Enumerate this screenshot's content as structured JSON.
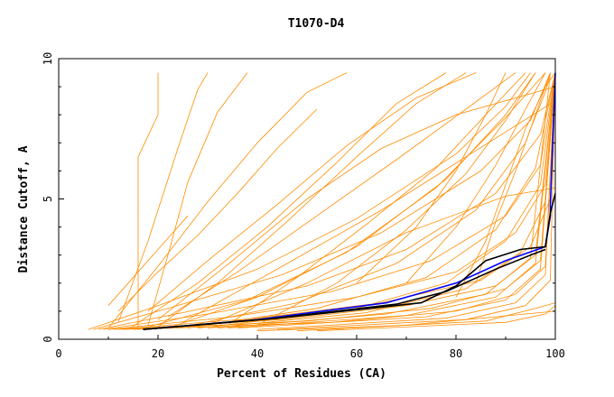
{
  "chart_data": {
    "type": "line",
    "title": "T1070-D4",
    "xlabel": "Percent of Residues (CA)",
    "ylabel": "Distance Cutoff, A",
    "xlim": [
      0,
      100
    ],
    "ylim": [
      0,
      10
    ],
    "x_ticks": [
      0,
      20,
      40,
      60,
      80,
      100
    ],
    "y_ticks": [
      0,
      5,
      10
    ],
    "grid": false,
    "legend": "none",
    "colors": {
      "models": "#ff8c00",
      "reference": "#0000ff",
      "highlight": "#000000"
    },
    "series": [
      {
        "color": "#ff8c00",
        "x": [
          6,
          20,
          40,
          60,
          80,
          90,
          95
        ],
        "y": [
          0.35,
          1.2,
          2.5,
          4.3,
          6.6,
          8.3,
          9.5
        ]
      },
      {
        "color": "#ff8c00",
        "x": [
          7,
          22,
          45,
          65,
          85,
          95,
          99
        ],
        "y": [
          0.35,
          1.1,
          2.3,
          3.8,
          6.0,
          7.8,
          9.5
        ]
      },
      {
        "color": "#ff8c00",
        "x": [
          8,
          25,
          50,
          70,
          88,
          97,
          100
        ],
        "y": [
          0.35,
          0.95,
          1.9,
          3.2,
          5.2,
          7.3,
          9.5
        ]
      },
      {
        "color": "#ff8c00",
        "x": [
          9,
          30,
          55,
          75,
          90,
          97,
          100
        ],
        "y": [
          0.35,
          0.9,
          1.7,
          2.8,
          4.4,
          6.2,
          9.5
        ]
      },
      {
        "color": "#ff8c00",
        "x": [
          10,
          35,
          60,
          80,
          92,
          98,
          100
        ],
        "y": [
          0.35,
          0.8,
          1.5,
          2.4,
          3.8,
          5.5,
          9.5
        ]
      },
      {
        "color": "#ff8c00",
        "x": [
          11,
          40,
          65,
          85,
          95,
          99,
          100
        ],
        "y": [
          0.35,
          0.75,
          1.3,
          2.1,
          3.3,
          5.0,
          9.5
        ]
      },
      {
        "color": "#ff8c00",
        "x": [
          12,
          45,
          70,
          88,
          96,
          100
        ],
        "y": [
          0.35,
          0.7,
          1.2,
          1.9,
          3.0,
          9.5
        ]
      },
      {
        "color": "#ff8c00",
        "x": [
          13,
          50,
          75,
          90,
          97,
          100
        ],
        "y": [
          0.35,
          0.65,
          1.1,
          1.8,
          2.8,
          9.5
        ]
      },
      {
        "color": "#ff8c00",
        "x": [
          15,
          55,
          80,
          92,
          98,
          100
        ],
        "y": [
          0.35,
          0.6,
          1.0,
          1.6,
          2.6,
          9.5
        ]
      },
      {
        "color": "#ff8c00",
        "x": [
          16,
          38,
          58,
          76,
          90,
          98
        ],
        "y": [
          0.35,
          1.4,
          3.1,
          5.4,
          7.9,
          9.5
        ]
      },
      {
        "color": "#ff8c00",
        "x": [
          14,
          28,
          42,
          56,
          68,
          78
        ],
        "y": [
          0.35,
          2.0,
          4.0,
          6.3,
          8.4,
          9.5
        ]
      },
      {
        "color": "#ff8c00",
        "x": [
          10,
          20,
          30,
          40,
          50,
          58
        ],
        "y": [
          0.4,
          2.6,
          4.9,
          7.0,
          8.8,
          9.5
        ]
      },
      {
        "color": "#ff8c00",
        "x": [
          12,
          18,
          24,
          28,
          30
        ],
        "y": [
          0.6,
          3.5,
          6.8,
          8.9,
          9.5
        ]
      },
      {
        "color": "#ff8c00",
        "x": [
          16,
          16,
          20,
          20
        ],
        "y": [
          0.4,
          6.5,
          8.0,
          9.5
        ]
      },
      {
        "color": "#ff8c00",
        "x": [
          18,
          22,
          26,
          32,
          38
        ],
        "y": [
          0.5,
          3.0,
          5.6,
          8.1,
          9.5
        ]
      },
      {
        "color": "#ff8c00",
        "x": [
          20,
          32,
          46,
          60,
          72,
          82
        ],
        "y": [
          0.45,
          2.0,
          4.2,
          6.5,
          8.4,
          9.5
        ]
      },
      {
        "color": "#ff8c00",
        "x": [
          22,
          40,
          60,
          78,
          90,
          96
        ],
        "y": [
          0.4,
          1.5,
          3.3,
          5.7,
          8.0,
          9.5
        ]
      },
      {
        "color": "#ff8c00",
        "x": [
          24,
          48,
          68,
          84,
          94,
          99
        ],
        "y": [
          0.4,
          1.3,
          2.7,
          4.6,
          7.0,
          9.5
        ]
      },
      {
        "color": "#ff8c00",
        "x": [
          26,
          52,
          74,
          88,
          96,
          100
        ],
        "y": [
          0.4,
          1.1,
          2.2,
          3.9,
          6.1,
          9.5
        ]
      },
      {
        "color": "#ff8c00",
        "x": [
          28,
          58,
          78,
          90,
          97,
          100
        ],
        "y": [
          0.4,
          1.0,
          2.0,
          3.5,
          5.5,
          9.5
        ]
      },
      {
        "color": "#ff8c00",
        "x": [
          30,
          62,
          82,
          93,
          98,
          100
        ],
        "y": [
          0.4,
          0.95,
          1.8,
          3.1,
          4.9,
          9.5
        ]
      },
      {
        "color": "#ff8c00",
        "x": [
          32,
          66,
          86,
          95,
          99
        ],
        "y": [
          0.4,
          0.9,
          1.6,
          2.9,
          9.5
        ]
      },
      {
        "color": "#ff8c00",
        "x": [
          34,
          70,
          88,
          96,
          100
        ],
        "y": [
          0.4,
          0.85,
          1.5,
          2.7,
          9.5
        ]
      },
      {
        "color": "#ff8c00",
        "x": [
          36,
          74,
          90,
          97,
          100
        ],
        "y": [
          0.4,
          0.8,
          1.4,
          2.5,
          9.5
        ]
      },
      {
        "color": "#ff8c00",
        "x": [
          40,
          78,
          92,
          98,
          100
        ],
        "y": [
          0.35,
          0.75,
          1.3,
          2.3,
          9.5
        ]
      },
      {
        "color": "#ff8c00",
        "x": [
          44,
          82,
          94,
          99,
          100
        ],
        "y": [
          0.35,
          0.7,
          1.2,
          2.1,
          9.5
        ]
      },
      {
        "color": "#ff8c00",
        "x": [
          48,
          86,
          96,
          100
        ],
        "y": [
          0.3,
          0.65,
          1.1,
          1.3
        ]
      },
      {
        "color": "#ff8c00",
        "x": [
          52,
          90,
          98,
          100
        ],
        "y": [
          0.3,
          0.6,
          0.9,
          1.2
        ]
      },
      {
        "color": "#ff8c00",
        "x": [
          40,
          70,
          88,
          100
        ],
        "y": [
          0.3,
          0.5,
          0.8,
          1.0
        ]
      },
      {
        "color": "#ff8c00",
        "x": [
          30,
          50,
          70,
          90,
          100
        ],
        "y": [
          0.5,
          2.0,
          3.8,
          5.1,
          5.4
        ]
      },
      {
        "color": "#ff8c00",
        "x": [
          25,
          45,
          65,
          82,
          100
        ],
        "y": [
          0.6,
          2.6,
          4.6,
          6.5,
          8.5
        ]
      },
      {
        "color": "#ff8c00",
        "x": [
          20,
          35,
          50,
          65,
          80,
          100
        ],
        "y": [
          0.7,
          2.8,
          5.0,
          6.8,
          8.0,
          9.0
        ]
      },
      {
        "color": "#ff8c00",
        "x": [
          34,
          48,
          62,
          76,
          86,
          94
        ],
        "y": [
          0.5,
          2.2,
          4.1,
          6.1,
          8.0,
          9.5
        ]
      },
      {
        "color": "#ff8c00",
        "x": [
          40,
          56,
          70,
          82,
          90,
          96
        ],
        "y": [
          0.5,
          2.0,
          3.9,
          5.9,
          7.8,
          9.5
        ]
      },
      {
        "color": "#ff8c00",
        "x": [
          60,
          72,
          80,
          86,
          90
        ],
        "y": [
          2.0,
          4.0,
          6.0,
          8.0,
          9.5
        ]
      },
      {
        "color": "#ff8c00",
        "x": [
          70,
          80,
          88,
          94,
          98
        ],
        "y": [
          2.0,
          4.0,
          6.2,
          8.2,
          9.5
        ]
      },
      {
        "color": "#ff8c00",
        "x": [
          80,
          86,
          90,
          94,
          98,
          100
        ],
        "y": [
          1.5,
          3.5,
          5.5,
          7.5,
          9.0,
          9.5
        ]
      },
      {
        "color": "#ff8c00",
        "x": [
          84,
          88,
          92,
          95,
          98,
          99
        ],
        "y": [
          2.0,
          4.2,
          6.0,
          7.5,
          8.8,
          9.5
        ]
      },
      {
        "color": "#ff8c00",
        "x": [
          10,
          14,
          18,
          22,
          26
        ],
        "y": [
          1.2,
          2.0,
          2.8,
          3.6,
          4.4
        ]
      },
      {
        "color": "#ff8c00",
        "x": [
          12,
          20,
          28,
          36,
          44,
          52
        ],
        "y": [
          1.0,
          2.4,
          3.7,
          5.2,
          6.8,
          8.2
        ]
      },
      {
        "color": "#ff8c00",
        "x": [
          18,
          30,
          44,
          58,
          72,
          84
        ],
        "y": [
          1.0,
          2.8,
          4.8,
          6.9,
          8.6,
          9.5
        ]
      },
      {
        "color": "#ff8c00",
        "x": [
          22,
          36,
          52,
          68,
          82,
          92
        ],
        "y": [
          0.8,
          2.4,
          4.4,
          6.4,
          8.2,
          9.5
        ]
      },
      {
        "color": "#0000ff",
        "x": [
          17,
          40,
          66,
          80,
          90,
          98,
          99,
          99,
          100
        ],
        "y": [
          0.35,
          0.7,
          1.3,
          2.0,
          2.8,
          3.3,
          4.4,
          4.8,
          9.5
        ]
      },
      {
        "color": "#000000",
        "x": [
          17,
          44,
          73,
          80,
          86,
          93,
          98,
          99,
          100
        ],
        "y": [
          0.35,
          0.75,
          1.3,
          1.9,
          2.8,
          3.2,
          3.3,
          4.5,
          5.2
        ]
      },
      {
        "color": "#000000",
        "x": [
          17,
          42,
          68,
          78,
          88,
          95,
          98
        ],
        "y": [
          0.35,
          0.72,
          1.25,
          1.7,
          2.5,
          3.0,
          3.2
        ]
      }
    ]
  }
}
